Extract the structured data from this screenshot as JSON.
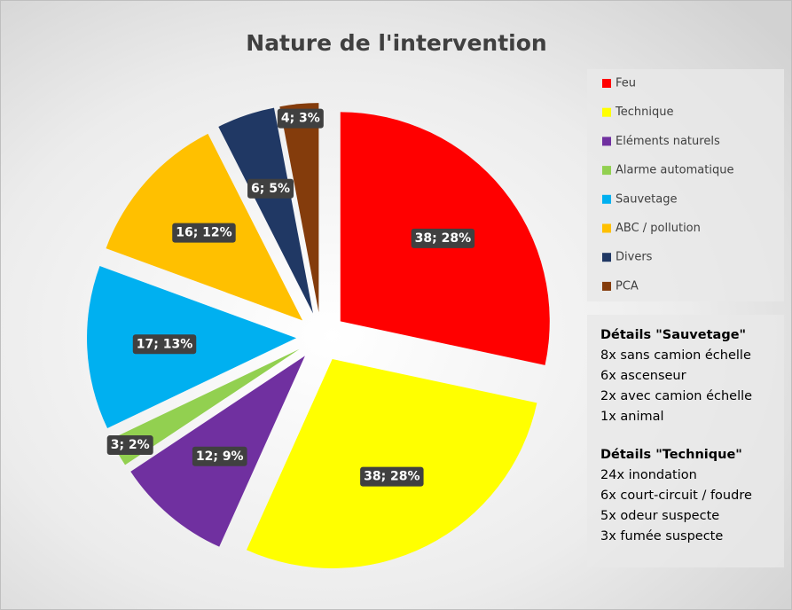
{
  "chart_data": {
    "type": "pie",
    "title": "Nature de l'intervention",
    "categories": [
      "Feu",
      "Technique",
      "Eléments naturels",
      "Alarme automatique",
      "Sauvetage",
      "ABC / pollution",
      "Divers",
      "PCA"
    ],
    "values": [
      38,
      38,
      12,
      3,
      17,
      16,
      6,
      4
    ],
    "value_labels": [
      "38; 28%",
      "38; 28%",
      "12; 9%",
      "3; 2%",
      "17; 13%",
      "16; 12%",
      "6; 5%",
      "4; 3%"
    ],
    "colors": [
      "#ff0000",
      "#ffff00",
      "#7030a0",
      "#92d050",
      "#00b0f0",
      "#ffc000",
      "#203864",
      "#843c0c"
    ],
    "legend": "right"
  },
  "details": [
    {
      "title": "Détails \"Sauvetage\"",
      "lines": [
        "8x sans camion échelle",
        "6x ascenseur",
        "2x avec camion échelle",
        "1x animal"
      ]
    },
    {
      "title": "Détails \"Technique\"",
      "lines": [
        "24x inondation",
        "6x court-circuit / foudre",
        "5x odeur suspecte",
        "3x fumée suspecte"
      ]
    }
  ]
}
